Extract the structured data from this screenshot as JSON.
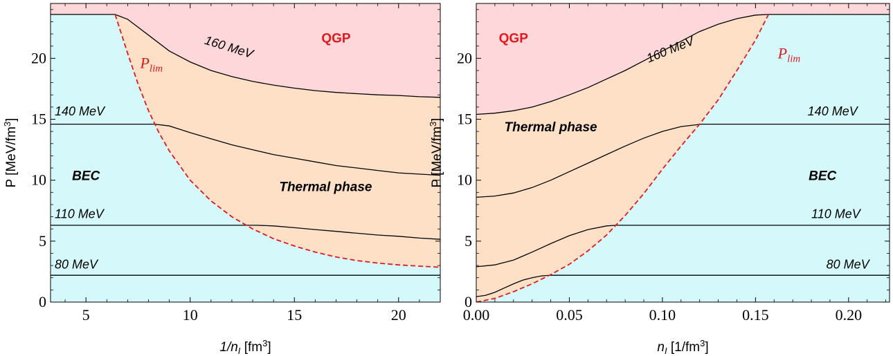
{
  "colors": {
    "qgp": "#fdd7d9",
    "thermal": "#fde0c6",
    "bec": "#d5f9fb",
    "curve": "#000000",
    "plim": "#e0191f"
  },
  "chart_data": [
    {
      "type": "line",
      "xlabel": "1/n",
      "xlabel_sub": "I",
      "xlabel_unit": " [fm",
      "xlabel_unit_sup": "3",
      "xlabel_unit_end": "]",
      "ylabel": "P [MeV/fm",
      "ylabel_sup": "3",
      "ylabel_end": "]",
      "xlim": [
        3.3,
        22
      ],
      "ylim": [
        0,
        24.5
      ],
      "xticks": [
        "5",
        "10",
        "15",
        "20"
      ],
      "yticks": [
        "0",
        "5",
        "10",
        "15",
        "20"
      ],
      "plim": {
        "label": "P",
        "label_sub": "lim",
        "x": [
          6.4,
          7.0,
          7.5,
          8.0,
          8.5,
          9.0,
          10.0,
          11.0,
          12.0,
          13.0,
          14.0,
          15.0,
          16.0,
          17.0,
          18.0,
          19.0,
          20.0,
          21.0,
          22.0
        ],
        "y": [
          23.6,
          20.4,
          17.9,
          15.7,
          13.9,
          12.4,
          10.0,
          8.3,
          7.0,
          6.0,
          5.2,
          4.6,
          4.1,
          3.7,
          3.4,
          3.2,
          3.05,
          2.95,
          2.85
        ]
      },
      "series": [
        {
          "label": "160 MeV",
          "label_at": [
            11.8,
            20.6
          ],
          "label_angle": 17,
          "x": [
            3.3,
            6.4,
            7.0,
            8.0,
            9.0,
            10.0,
            11.0,
            12.0,
            13.0,
            14.0,
            15.0,
            16.0,
            17.0,
            18.0,
            19.0,
            20.0,
            21.0,
            22.0
          ],
          "y": [
            23.6,
            23.6,
            23.2,
            21.9,
            20.6,
            19.7,
            19.0,
            18.5,
            18.1,
            17.8,
            17.55,
            17.35,
            17.2,
            17.1,
            17.0,
            16.95,
            16.85,
            16.8
          ]
        },
        {
          "label": "140 MeV",
          "label_at": [
            3.5,
            15.3
          ],
          "label_angle": 0,
          "x": [
            3.3,
            8.3,
            9.0,
            10.0,
            11.0,
            12.0,
            13.0,
            14.0,
            15.0,
            16.0,
            17.0,
            18.0,
            19.0,
            20.0,
            21.0,
            22.0
          ],
          "y": [
            14.6,
            14.6,
            14.45,
            13.9,
            13.4,
            12.9,
            12.5,
            12.1,
            11.8,
            11.5,
            11.2,
            11.0,
            10.8,
            10.6,
            10.5,
            10.4
          ]
        },
        {
          "label": "110 MeV",
          "label_at": [
            3.5,
            6.9
          ],
          "label_angle": 0,
          "x": [
            3.3,
            13.2,
            14.0,
            15.0,
            16.0,
            17.0,
            18.0,
            19.0,
            20.0,
            21.0,
            22.0
          ],
          "y": [
            6.3,
            6.3,
            6.25,
            6.1,
            5.95,
            5.8,
            5.65,
            5.5,
            5.4,
            5.25,
            5.15
          ]
        },
        {
          "label": "80 MeV",
          "label_at": [
            3.5,
            2.75
          ],
          "label_angle": 0,
          "x": [
            3.3,
            22.0
          ],
          "y": [
            2.2,
            2.2
          ]
        }
      ],
      "regions": [
        {
          "label": "QGP",
          "at": [
            17.0,
            21.3
          ]
        },
        {
          "label": "BEC",
          "at": [
            5.0,
            10.0
          ]
        },
        {
          "label": "Thermal phase",
          "at": [
            16.5,
            9.1
          ]
        }
      ],
      "plim_label_at": [
        7.6,
        19.2
      ]
    },
    {
      "type": "line",
      "xlabel": "n",
      "xlabel_sub": "I",
      "xlabel_unit": " [1/fm",
      "xlabel_unit_sup": "3",
      "xlabel_unit_end": "]",
      "ylabel": "P [MeV/fm",
      "ylabel_sup": "3",
      "ylabel_end": "]",
      "xlim": [
        0,
        0.222
      ],
      "ylim": [
        0,
        24.5
      ],
      "xticks": [
        "0.00",
        "0.05",
        "0.10",
        "0.15",
        "0.20"
      ],
      "yticks": [
        "0",
        "5",
        "10",
        "15",
        "20"
      ],
      "plim": {
        "label": "P",
        "label_sub": "lim",
        "x": [
          0.0,
          0.01,
          0.02,
          0.03,
          0.04,
          0.05,
          0.06,
          0.07,
          0.08,
          0.09,
          0.1,
          0.11,
          0.12,
          0.13,
          0.14,
          0.15,
          0.157
        ],
        "y": [
          0.0,
          0.3,
          0.85,
          1.5,
          2.25,
          3.1,
          4.2,
          5.5,
          7.1,
          8.9,
          10.9,
          12.8,
          14.6,
          16.6,
          19.0,
          21.5,
          23.6
        ]
      },
      "series": [
        {
          "label": "160 MeV",
          "label_at": [
            0.105,
            20.4
          ],
          "label_angle": -22,
          "x": [
            0.0,
            0.01,
            0.02,
            0.03,
            0.04,
            0.05,
            0.06,
            0.07,
            0.08,
            0.09,
            0.1,
            0.11,
            0.12,
            0.13,
            0.14,
            0.15,
            0.157,
            0.222
          ],
          "y": [
            15.4,
            15.5,
            15.7,
            16.0,
            16.45,
            17.0,
            17.6,
            18.3,
            19.0,
            19.8,
            20.6,
            21.4,
            22.2,
            22.8,
            23.25,
            23.55,
            23.6,
            23.6
          ]
        },
        {
          "label": "140 MeV",
          "label_at": [
            0.178,
            15.3
          ],
          "label_angle": 0,
          "x": [
            0.0,
            0.01,
            0.02,
            0.03,
            0.04,
            0.05,
            0.06,
            0.07,
            0.08,
            0.09,
            0.1,
            0.11,
            0.121,
            0.222
          ],
          "y": [
            8.6,
            8.7,
            8.95,
            9.4,
            10.0,
            10.7,
            11.4,
            12.1,
            12.8,
            13.45,
            14.0,
            14.4,
            14.6,
            14.6
          ]
        },
        {
          "label": "110 MeV",
          "label_at": [
            0.18,
            6.9
          ],
          "label_angle": 0,
          "x": [
            0.0,
            0.01,
            0.02,
            0.03,
            0.04,
            0.05,
            0.06,
            0.07,
            0.075,
            0.222
          ],
          "y": [
            2.9,
            3.05,
            3.45,
            4.1,
            4.8,
            5.45,
            5.95,
            6.25,
            6.3,
            6.3
          ]
        },
        {
          "label": "80 MeV",
          "label_at": [
            0.188,
            2.75
          ],
          "label_angle": 0,
          "x": [
            0.0,
            0.005,
            0.01,
            0.015,
            0.02,
            0.025,
            0.03,
            0.035,
            0.04,
            0.222
          ],
          "y": [
            0.45,
            0.55,
            0.8,
            1.15,
            1.5,
            1.8,
            2.0,
            2.15,
            2.2,
            2.2
          ]
        }
      ],
      "regions": [
        {
          "label": "QGP",
          "at": [
            0.02,
            21.3
          ]
        },
        {
          "label": "Thermal phase",
          "at": [
            0.04,
            14.0
          ]
        },
        {
          "label": "BEC",
          "at": [
            0.186,
            10.0
          ]
        }
      ],
      "plim_label_at": [
        0.162,
        20.0
      ]
    }
  ]
}
